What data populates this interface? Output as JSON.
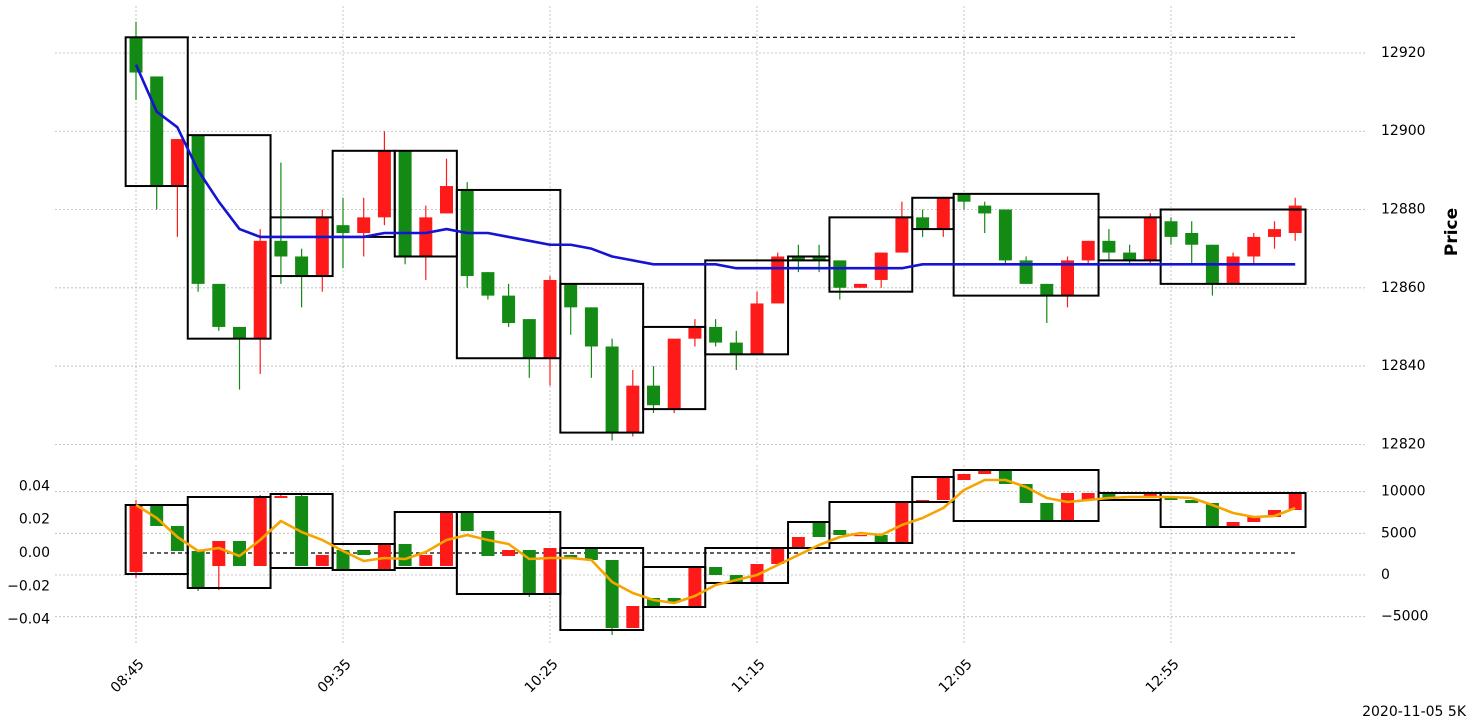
{
  "footer": "2020-11-05 5K",
  "chart_data": [
    {
      "type": "candlestick",
      "ylabel": "Price",
      "yaxis_side": "right",
      "grid": true,
      "ylim": [
        12816,
        12932
      ],
      "yticks": [
        12820,
        12840,
        12860,
        12880,
        12900,
        12920
      ],
      "up_color": "#ff1a1a",
      "down_color": "#138a13",
      "open": [
        12924,
        12914,
        12886,
        12899,
        12861,
        12850,
        12847,
        12872,
        12868,
        12863,
        12876,
        12874,
        12878,
        12895,
        12868,
        12879,
        12885,
        12864,
        12858,
        12852,
        12842,
        12861,
        12855,
        12845,
        12823,
        12835,
        12829,
        12847,
        12850,
        12846,
        12843,
        12856,
        12868,
        12868,
        12867,
        12860,
        12862,
        12869,
        12878,
        12875,
        12884,
        12881,
        12880,
        12867,
        12861,
        12858,
        12867,
        12872,
        12869,
        12867,
        12877,
        12874,
        12871,
        12861,
        12868,
        12873,
        12874
      ],
      "high": [
        12928,
        12914,
        12898,
        12899,
        12861,
        12850,
        12875,
        12892,
        12870,
        12880,
        12883,
        12883,
        12900,
        12895,
        12881,
        12893,
        12887,
        12864,
        12861,
        12852,
        12863,
        12861,
        12855,
        12847,
        12839,
        12840,
        12847,
        12852,
        12852,
        12849,
        12859,
        12869,
        12871,
        12871,
        12867,
        12861,
        12869,
        12882,
        12880,
        12883,
        12884,
        12882,
        12880,
        12868,
        12861,
        12868,
        12872,
        12875,
        12871,
        12879,
        12878,
        12877,
        12871,
        12869,
        12874,
        12877,
        12883
      ],
      "low": [
        12908,
        12880,
        12873,
        12859,
        12849,
        12834,
        12838,
        12861,
        12855,
        12859,
        12865,
        12868,
        12876,
        12866,
        12862,
        12879,
        12860,
        12857,
        12850,
        12837,
        12835,
        12848,
        12837,
        12821,
        12822,
        12828,
        12828,
        12845,
        12845,
        12839,
        12843,
        12856,
        12864,
        12864,
        12857,
        12860,
        12860,
        12869,
        12873,
        12873,
        12880,
        12874,
        12866,
        12861,
        12851,
        12855,
        12866,
        12867,
        12866,
        12866,
        12871,
        12866,
        12858,
        12861,
        12866,
        12870,
        12872
      ],
      "close": [
        12915,
        12886,
        12898,
        12861,
        12850,
        12847,
        12872,
        12868,
        12863,
        12878,
        12874,
        12878,
        12895,
        12868,
        12878,
        12886,
        12863,
        12858,
        12851,
        12842,
        12862,
        12855,
        12845,
        12823,
        12835,
        12830,
        12847,
        12850,
        12846,
        12843,
        12856,
        12868,
        12867,
        12867,
        12860,
        12861,
        12869,
        12878,
        12875,
        12883,
        12882,
        12879,
        12867,
        12861,
        12858,
        12867,
        12872,
        12869,
        12867,
        12878,
        12873,
        12871,
        12861,
        12868,
        12873,
        12875,
        12881
      ],
      "ma": {
        "color": "#1414d2",
        "values": [
          12917,
          12905,
          12901,
          12890,
          12882,
          12875,
          12873,
          12873,
          12873,
          12873,
          12873,
          12873,
          12874,
          12874,
          12874,
          12875,
          12874,
          12874,
          12873,
          12872,
          12871,
          12871,
          12870,
          12868,
          12867,
          12866,
          12866,
          12866,
          12866,
          12865,
          12865,
          12865,
          12865,
          12865,
          12865,
          12865,
          12865,
          12865,
          12866,
          12866,
          12866,
          12866,
          12866,
          12866,
          12866,
          12866,
          12866,
          12866,
          12866,
          12866,
          12866,
          12866,
          12866,
          12866,
          12866,
          12866,
          12866
        ]
      },
      "dashed_line": {
        "value": 12924
      },
      "boxes": [
        {
          "from": 0,
          "to": 2,
          "high": 12924,
          "low": 12886
        },
        {
          "from": 3,
          "to": 6,
          "high": 12899,
          "low": 12847
        },
        {
          "from": 7,
          "to": 9,
          "high": 12878,
          "low": 12863
        },
        {
          "from": 10,
          "to": 12,
          "high": 12895,
          "low": 12873
        },
        {
          "from": 13,
          "to": 15,
          "high": 12895,
          "low": 12868
        },
        {
          "from": 16,
          "to": 20,
          "high": 12885,
          "low": 12842
        },
        {
          "from": 21,
          "to": 24,
          "high": 12861,
          "low": 12823
        },
        {
          "from": 25,
          "to": 27,
          "high": 12850,
          "low": 12829
        },
        {
          "from": 28,
          "to": 31,
          "high": 12867,
          "low": 12843
        },
        {
          "from": 32,
          "to": 33,
          "high": 12868,
          "low": 12867
        },
        {
          "from": 34,
          "to": 37,
          "high": 12878,
          "low": 12859
        },
        {
          "from": 38,
          "to": 39,
          "high": 12883,
          "low": 12875
        },
        {
          "from": 40,
          "to": 46,
          "high": 12884,
          "low": 12858
        },
        {
          "from": 47,
          "to": 49,
          "high": 12878,
          "low": 12867
        },
        {
          "from": 50,
          "to": 56,
          "high": 12880,
          "low": 12861
        }
      ]
    },
    {
      "type": "candlestick",
      "grid": "y2",
      "data_axis": "y2",
      "categories": [
        "08:45",
        null,
        null,
        null,
        null,
        null,
        null,
        null,
        null,
        null,
        "09:35",
        null,
        null,
        null,
        null,
        null,
        null,
        null,
        null,
        null,
        "10:25",
        null,
        null,
        null,
        null,
        null,
        null,
        null,
        null,
        null,
        "11:15",
        null,
        null,
        null,
        null,
        null,
        null,
        null,
        null,
        null,
        "12:05",
        null,
        null,
        null,
        null,
        null,
        null,
        null,
        null,
        null,
        "12:55",
        null,
        null,
        null,
        null,
        null,
        null
      ],
      "ylim": [
        -0.0552,
        0.0528
      ],
      "yticks": [
        {
          "value": -0.04,
          "label": "−0.04"
        },
        {
          "value": -0.02,
          "label": "−0.02"
        },
        {
          "value": 0,
          "label": "0.00"
        },
        0.02,
        0.04
      ],
      "y2lim": [
        -8400,
        13200
      ],
      "y2ticks": [
        {
          "value": -5000,
          "label": "−5000"
        },
        0,
        5000,
        10000
      ],
      "up_color": "#ff1a1a",
      "down_color": "#138a13",
      "open": [
        360,
        8400,
        5880,
        2880,
        1080,
        4080,
        1080,
        9240,
        9480,
        1080,
        3000,
        3000,
        600,
        3720,
        1080,
        1080,
        7560,
        5280,
        2280,
        3000,
        -2160,
        2400,
        3240,
        1800,
        -6360,
        -2760,
        -2760,
        -3720,
        960,
        0,
        -960,
        1320,
        3240,
        6360,
        5400,
        4800,
        4800,
        3960,
        8760,
        9000,
        11400,
        12120,
        12600,
        10920,
        8640,
        6480,
        9000,
        9840,
        9480,
        9480,
        9240,
        9000,
        8640,
        5760,
        6360,
        6960,
        7800
      ],
      "high": [
        9000,
        8400,
        5880,
        2880,
        4080,
        4080,
        9600,
        9600,
        9840,
        2400,
        3000,
        3000,
        3720,
        3720,
        2400,
        7560,
        7560,
        5280,
        3000,
        3000,
        3240,
        2400,
        3240,
        1800,
        -3720,
        -2760,
        -2760,
        960,
        960,
        0,
        1320,
        3240,
        4560,
        6360,
        5400,
        4800,
        4800,
        8760,
        9000,
        11760,
        12120,
        12600,
        12600,
        10920,
        8640,
        9840,
        9840,
        9840,
        9480,
        9720,
        9240,
        9000,
        8640,
        6360,
        6960,
        7800,
        9840
      ],
      "low": [
        -360,
        5880,
        2880,
        -1920,
        -1800,
        1080,
        1080,
        9240,
        1080,
        1080,
        600,
        2400,
        600,
        1080,
        1080,
        1080,
        5280,
        2280,
        2280,
        -2640,
        -2160,
        1920,
        1800,
        -7200,
        -6360,
        -3720,
        -3240,
        -3720,
        0,
        -960,
        -960,
        1320,
        3240,
        4560,
        4800,
        4800,
        3960,
        3960,
        8760,
        9000,
        11400,
        12120,
        10920,
        8640,
        6480,
        6480,
        9000,
        9000,
        9240,
        9480,
        9000,
        8640,
        5760,
        5760,
        6360,
        6960,
        7800
      ],
      "close": [
        8400,
        5880,
        2880,
        -1440,
        4080,
        1080,
        9240,
        9480,
        1080,
        2400,
        600,
        2400,
        3720,
        1080,
        2400,
        7560,
        5280,
        2280,
        3000,
        -2160,
        3240,
        1920,
        1800,
        -6360,
        -3720,
        -3720,
        -3240,
        960,
        0,
        -960,
        1320,
        3240,
        4560,
        4560,
        4800,
        4800,
        3960,
        8760,
        9000,
        11760,
        12120,
        12600,
        10920,
        8640,
        6480,
        9840,
        9840,
        9000,
        9240,
        9720,
        9000,
        8640,
        5760,
        6360,
        6960,
        7800,
        9840
      ],
      "ma": {
        "color": "#f5a500",
        "values": [
          8400,
          6840,
          4560,
          2880,
          3240,
          2280,
          4200,
          6480,
          5160,
          4200,
          2880,
          1680,
          2040,
          1920,
          2760,
          4200,
          4800,
          4200,
          3720,
          1920,
          2040,
          2040,
          1800,
          -840,
          -2160,
          -3000,
          -3360,
          -2520,
          -1200,
          -600,
          0,
          1200,
          2400,
          3600,
          4560,
          5040,
          4800,
          6000,
          6840,
          8040,
          10200,
          11400,
          11400,
          10560,
          9240,
          8760,
          9000,
          9240,
          9360,
          9360,
          9360,
          9240,
          8400,
          7440,
          6960,
          7080,
          8040
        ]
      },
      "dashed_line": {
        "value": 0,
        "axis": "y"
      },
      "boxes": [
        {
          "from": 0,
          "to": 2,
          "high": 8400,
          "low": 120
        },
        {
          "from": 3,
          "to": 6,
          "high": 9360,
          "low": -1560
        },
        {
          "from": 7,
          "to": 9,
          "high": 9720,
          "low": 840
        },
        {
          "from": 10,
          "to": 12,
          "high": 3720,
          "low": 600
        },
        {
          "from": 13,
          "to": 15,
          "high": 7560,
          "low": 840
        },
        {
          "from": 16,
          "to": 20,
          "high": 7560,
          "low": -2280
        },
        {
          "from": 21,
          "to": 24,
          "high": 3240,
          "low": -6600
        },
        {
          "from": 25,
          "to": 27,
          "high": 960,
          "low": -3840
        },
        {
          "from": 28,
          "to": 31,
          "high": 3240,
          "low": -960
        },
        {
          "from": 32,
          "to": 33,
          "high": 6360,
          "low": 3240
        },
        {
          "from": 34,
          "to": 37,
          "high": 8760,
          "low": 3840
        },
        {
          "from": 38,
          "to": 39,
          "high": 11760,
          "low": 8760
        },
        {
          "from": 40,
          "to": 46,
          "high": 12600,
          "low": 6480
        },
        {
          "from": 47,
          "to": 49,
          "high": 9840,
          "low": 9000
        },
        {
          "from": 50,
          "to": 56,
          "high": 9840,
          "low": 5760
        }
      ]
    }
  ]
}
